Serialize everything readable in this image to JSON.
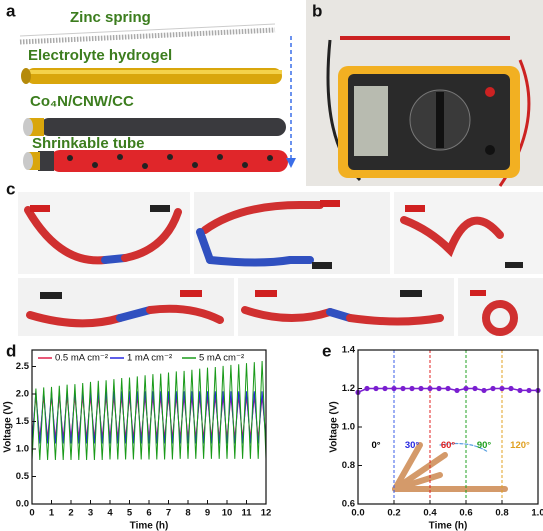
{
  "panels": {
    "a": {
      "label": "a",
      "layers": [
        "Zinc spring",
        "Electrolyte hydrogel",
        "Co₄N/CNW/CC",
        "Shrinkable tube"
      ]
    },
    "b": {
      "label": "b"
    },
    "c": {
      "label": "c"
    }
  },
  "chart_data": [
    {
      "label": "d",
      "type": "line",
      "xlabel": "Time (h)",
      "ylabel": "Voltage (V)",
      "xlim": [
        0,
        12
      ],
      "ylim": [
        0,
        2.8
      ],
      "xticks": [
        0,
        1,
        2,
        3,
        4,
        5,
        6,
        7,
        8,
        9,
        10,
        11,
        12
      ],
      "yticks": [
        {
          "value": 0,
          "label": "0.0"
        },
        0.5,
        {
          "value": 1,
          "label": "1.0"
        },
        1.5,
        {
          "value": 2,
          "label": "2.0"
        },
        2.5
      ],
      "x": [
        0,
        0.2,
        0.4,
        0.6,
        0.8,
        1,
        1.2,
        1.4,
        1.6,
        1.8,
        2,
        2.2,
        2.4,
        2.6,
        2.8,
        3,
        3.2,
        3.4,
        3.6,
        3.8,
        4,
        4.2,
        4.4,
        4.6,
        4.8,
        5,
        5.2,
        5.4,
        5.6,
        5.8,
        6,
        6.2,
        6.4,
        6.6,
        6.8,
        7,
        7.2,
        7.4,
        7.6,
        7.8,
        8,
        8.2,
        8.4,
        8.6,
        8.8,
        9,
        9.2,
        9.4,
        9.6,
        9.8,
        10,
        10.2,
        10.4,
        10.6,
        10.8,
        11,
        11.2,
        11.4,
        11.6,
        11.8,
        12
      ],
      "series": [
        {
          "name": "0.5 mA cm⁻²",
          "color": "#e0204a",
          "values": [
            1.2,
            1.95,
            1.2,
            1.95,
            1.2,
            1.95,
            1.2,
            1.95,
            1.2,
            1.95,
            1.2,
            1.95,
            1.2,
            1.95,
            1.2,
            1.95,
            1.2,
            1.95,
            1.2,
            1.95,
            1.2,
            1.95,
            1.2,
            1.95,
            1.2,
            1.95,
            1.2,
            1.95,
            1.2,
            1.95,
            1.2,
            1.95,
            1.2,
            1.95,
            1.2,
            1.95,
            1.2,
            1.95,
            1.2,
            1.95,
            1.2,
            1.95,
            1.2,
            1.95,
            1.2,
            1.95,
            1.2,
            1.95,
            1.2,
            1.95,
            1.2,
            1.95,
            1.2,
            1.95,
            1.2,
            1.95,
            1.2,
            1.95,
            1.2,
            1.95,
            1.2
          ]
        },
        {
          "name": "1 mA cm⁻²",
          "color": "#2828e0",
          "values": [
            1.1,
            2.05,
            1.1,
            2.05,
            1.1,
            2.05,
            1.1,
            2.05,
            1.1,
            2.05,
            1.1,
            2.05,
            1.1,
            2.05,
            1.1,
            2.05,
            1.1,
            2.05,
            1.1,
            2.05,
            1.1,
            2.05,
            1.1,
            2.05,
            1.1,
            2.05,
            1.1,
            2.05,
            1.1,
            2.05,
            1.1,
            2.05,
            1.1,
            2.05,
            1.1,
            2.05,
            1.1,
            2.05,
            1.1,
            2.05,
            1.1,
            2.05,
            1.1,
            2.05,
            1.1,
            2.05,
            1.1,
            2.05,
            1.1,
            2.05,
            1.1,
            2.05,
            1.1,
            2.05,
            1.1,
            2.05,
            1.1,
            2.05,
            1.1,
            2.05,
            1.1
          ]
        },
        {
          "name": "5 mA cm⁻²",
          "color": "#1a9a1a",
          "values": [
            0.8,
            2.1,
            0.8,
            2.12,
            0.8,
            2.13,
            0.8,
            2.15,
            0.8,
            2.17,
            0.8,
            2.18,
            0.8,
            2.2,
            0.8,
            2.22,
            0.8,
            2.24,
            0.8,
            2.25,
            0.81,
            2.27,
            0.81,
            2.29,
            0.81,
            2.3,
            0.81,
            2.32,
            0.81,
            2.34,
            0.81,
            2.36,
            0.81,
            2.37,
            0.81,
            2.39,
            0.81,
            2.41,
            0.82,
            2.42,
            0.82,
            2.44,
            0.82,
            2.46,
            0.82,
            2.48,
            0.82,
            2.49,
            0.82,
            2.51,
            0.82,
            2.53,
            0.82,
            2.54,
            0.82,
            2.56,
            0.82,
            2.58,
            0.82,
            2.6,
            0.82
          ]
        }
      ]
    },
    {
      "label": "e",
      "type": "line",
      "xlabel": "Time (h)",
      "ylabel": "Voltage (V)",
      "xlim": [
        0,
        1
      ],
      "ylim": [
        0.6,
        1.4
      ],
      "xticks": [
        {
          "value": 0,
          "label": "0.0"
        },
        0.2,
        0.4,
        0.6,
        0.8,
        {
          "value": 1,
          "label": "1.0"
        }
      ],
      "yticks": [
        0.6,
        0.8,
        {
          "value": 1,
          "label": "1.0"
        },
        1.2,
        1.4
      ],
      "x": [
        0,
        0.05,
        0.1,
        0.15,
        0.2,
        0.25,
        0.3,
        0.35,
        0.4,
        0.45,
        0.5,
        0.55,
        0.6,
        0.65,
        0.7,
        0.75,
        0.8,
        0.85,
        0.9,
        0.95,
        1
      ],
      "series": [
        {
          "color": "#7a1fd0",
          "values": [
            1.18,
            1.2,
            1.2,
            1.2,
            1.2,
            1.2,
            1.2,
            1.2,
            1.2,
            1.2,
            1.2,
            1.19,
            1.2,
            1.2,
            1.19,
            1.2,
            1.2,
            1.2,
            1.19,
            1.19,
            1.19
          ]
        }
      ],
      "dividers": [
        0.2,
        0.4,
        0.6,
        0.8
      ],
      "divider_colors": [
        "#3a5ee8",
        "#e02020",
        "#20a020",
        "#e0a020"
      ],
      "angle_labels": [
        "0°",
        "30°",
        "60°",
        "90°",
        "120°"
      ],
      "angle_colors": [
        "#000000",
        "#2828e0",
        "#e02020",
        "#20a020",
        "#e0a020"
      ]
    }
  ]
}
